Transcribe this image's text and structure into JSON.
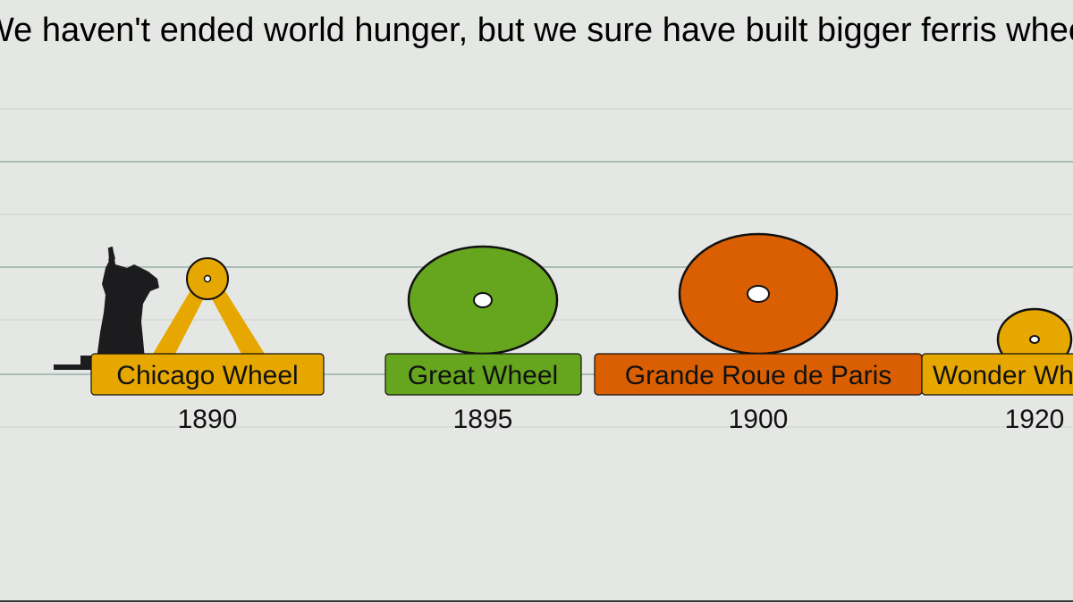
{
  "chart_data": {
    "type": "timeline",
    "title": "We haven't ended world hunger, but we sure have built bigger ferris wheels",
    "xlabel": "",
    "ylabel": "",
    "colors": {
      "background": "#e5e7e4",
      "grid_major": "#a9bdb5",
      "grid_minor": "#cdd3cf",
      "statue": "#1c1c1e",
      "outline": "#111111"
    },
    "wheels": [
      {
        "name": "Chicago Wheel",
        "year": "1890",
        "relative_size": 0.27,
        "color": "#e6a800",
        "label_color": "#e6a800",
        "style": "frame"
      },
      {
        "name": "Great Wheel",
        "year": "1895",
        "relative_size": 0.85,
        "color": "#66a61e",
        "label_color": "#66a61e",
        "style": "solid"
      },
      {
        "name": "Grande Roue de Paris",
        "year": "1900",
        "relative_size": 1.0,
        "color": "#d95f02",
        "label_color": "#d95f02",
        "style": "solid"
      },
      {
        "name": "Wonder Wheel",
        "year": "1920",
        "relative_size": 0.48,
        "color": "#e6a800",
        "label_color": "#e6a800",
        "style": "solid"
      }
    ],
    "reference": {
      "name": "statue-of-liberty",
      "icon": "statue-of-liberty-icon"
    }
  }
}
